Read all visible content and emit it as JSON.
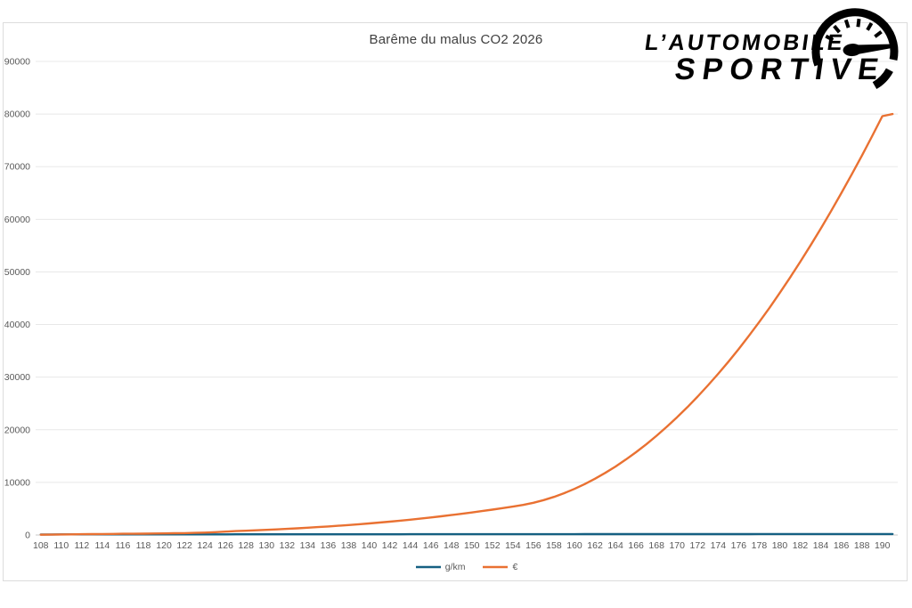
{
  "chart": {
    "title": "Barême du malus CO2 2026"
  },
  "logo": {
    "line1": "L’AUTOMOBILE",
    "line2": "SPORTIVE",
    "icon": "speedometer-icon",
    "color": "#000000"
  },
  "axis_style": {
    "gridline_color": "#e8e8e8",
    "baseline_color": "#c9c9c9",
    "tick_label_color": "#595959"
  },
  "chart_data": {
    "type": "line",
    "title": "Barême du malus CO2 2026",
    "xlabel": "",
    "ylabel": "",
    "ylim": [
      0,
      90000
    ],
    "ytick_step": 10000,
    "grid": "horizontal",
    "legend_position": "bottom",
    "x": [
      108,
      109,
      110,
      111,
      112,
      113,
      114,
      115,
      116,
      117,
      118,
      119,
      120,
      121,
      122,
      123,
      124,
      125,
      126,
      127,
      128,
      129,
      130,
      131,
      132,
      133,
      134,
      135,
      136,
      137,
      138,
      139,
      140,
      141,
      142,
      143,
      144,
      145,
      146,
      147,
      148,
      149,
      150,
      151,
      152,
      153,
      154,
      155,
      156,
      157,
      158,
      159,
      160,
      161,
      162,
      163,
      164,
      165,
      166,
      167,
      168,
      169,
      170,
      171,
      172,
      173,
      174,
      175,
      176,
      177,
      178,
      179,
      180,
      181,
      182,
      183,
      184,
      185,
      186,
      187,
      188,
      189,
      190,
      191
    ],
    "series": [
      {
        "name": "g/km",
        "color": "#156082",
        "values": [
          108,
          109,
          110,
          111,
          112,
          113,
          114,
          115,
          116,
          117,
          118,
          119,
          120,
          121,
          122,
          123,
          124,
          125,
          126,
          127,
          128,
          129,
          130,
          131,
          132,
          133,
          134,
          135,
          136,
          137,
          138,
          139,
          140,
          141,
          142,
          143,
          144,
          145,
          146,
          147,
          148,
          149,
          150,
          151,
          152,
          153,
          154,
          155,
          156,
          157,
          158,
          159,
          160,
          161,
          162,
          163,
          164,
          165,
          166,
          167,
          168,
          169,
          170,
          171,
          172,
          173,
          174,
          175,
          176,
          177,
          178,
          179,
          180,
          181,
          182,
          183,
          184,
          185,
          186,
          187,
          188,
          189,
          190,
          191
        ]
      },
      {
        "name": "€",
        "color": "#e97132",
        "values": [
          50,
          75,
          100,
          125,
          150,
          170,
          190,
          210,
          230,
          240,
          260,
          280,
          310,
          330,
          360,
          400,
          450,
          540,
          650,
          740,
          818,
          898,
          983,
          1074,
          1172,
          1276,
          1386,
          1504,
          1629,
          1761,
          1901,
          2049,
          2205,
          2370,
          2544,
          2726,
          2918,
          3119,
          3331,
          3552,
          3784,
          4026,
          4279,
          4543,
          4818,
          5105,
          5404,
          5715,
          6126,
          6637,
          7248,
          7959,
          8770,
          9681,
          10692,
          11803,
          13014,
          14325,
          15736,
          17247,
          18858,
          20569,
          22380,
          24291,
          26302,
          28413,
          30624,
          32935,
          35346,
          37857,
          40468,
          43179,
          45990,
          48901,
          51912,
          55023,
          58234,
          61545,
          64956,
          68467,
          72078,
          75789,
          79600,
          80000
        ]
      }
    ]
  }
}
